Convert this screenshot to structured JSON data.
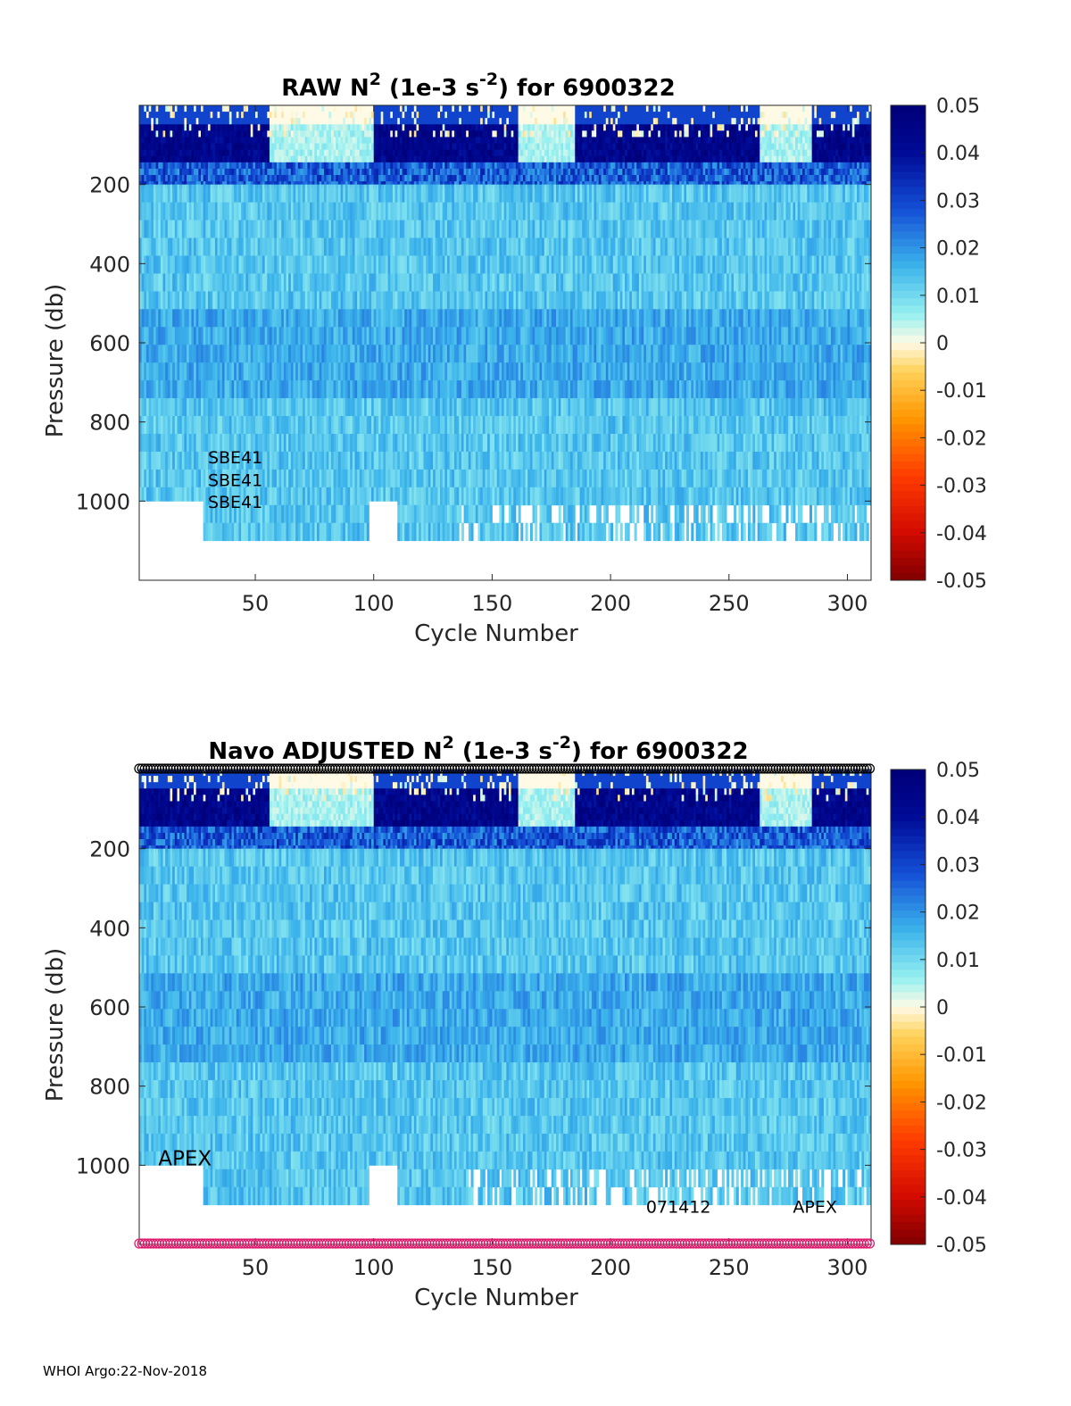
{
  "footer": "WHOI Argo:22-Nov-2018",
  "chart_data": [
    {
      "type": "heatmap",
      "title_parts": [
        "RAW N",
        "2",
        " (1e-3 s",
        "-2",
        ") for 6900322"
      ],
      "xlabel": "Cycle Number",
      "ylabel": "Pressure (db)",
      "xlim": [
        1,
        310
      ],
      "ylim": [
        1200,
        0
      ],
      "xticks": [
        50,
        100,
        150,
        200,
        250,
        300
      ],
      "yticks": [
        200,
        400,
        600,
        800,
        1000
      ],
      "colorbar": {
        "range": [
          -0.05,
          0.05
        ],
        "ticks": [
          0.05,
          0.04,
          0.03,
          0.02,
          0.01,
          0,
          -0.01,
          -0.02,
          -0.03,
          -0.04,
          -0.05
        ],
        "tick_labels": [
          "0.05",
          "0.04",
          "0.03",
          "0.02",
          "0.01",
          "0",
          "-0.01",
          "-0.02",
          "-0.03",
          "-0.04",
          "-0.05"
        ]
      },
      "annotations": [
        {
          "text": "SBE41",
          "x": 30,
          "y": 905
        },
        {
          "text": "SBE41",
          "x": 30,
          "y": 962
        },
        {
          "text": "SBE41",
          "x": 30,
          "y": 1017
        }
      ],
      "surface_markers": false,
      "bottom_markers": false
    },
    {
      "type": "heatmap",
      "title_parts": [
        "Navo  ADJUSTED N",
        "2",
        " (1e-3 s",
        "-2",
        ") for 6900322"
      ],
      "xlabel": "Cycle Number",
      "ylabel": "Pressure (db)",
      "xlim": [
        1,
        310
      ],
      "ylim": [
        1200,
        0
      ],
      "xticks": [
        50,
        100,
        150,
        200,
        250,
        300
      ],
      "yticks": [
        200,
        400,
        600,
        800,
        1000
      ],
      "colorbar": {
        "range": [
          -0.05,
          0.05
        ],
        "ticks": [
          0.05,
          0.04,
          0.03,
          0.02,
          0.01,
          0,
          -0.01,
          -0.02,
          -0.03,
          -0.04,
          -0.05
        ],
        "tick_labels": [
          "0.05",
          "0.04",
          "0.03",
          "0.02",
          "0.01",
          "0",
          "-0.01",
          "-0.02",
          "-0.03",
          "-0.04",
          "-0.05"
        ]
      },
      "annotations": [
        {
          "text": "APEX",
          "x": 9,
          "y": 1000,
          "large": true
        },
        {
          "text": "071412",
          "x": 215,
          "y": 1120
        },
        {
          "text": "APEX",
          "x": 277,
          "y": 1120
        }
      ],
      "surface_markers": true,
      "surface_marker_color": "#000000",
      "bottom_markers": true,
      "bottom_marker_color": "#e0186c"
    }
  ]
}
